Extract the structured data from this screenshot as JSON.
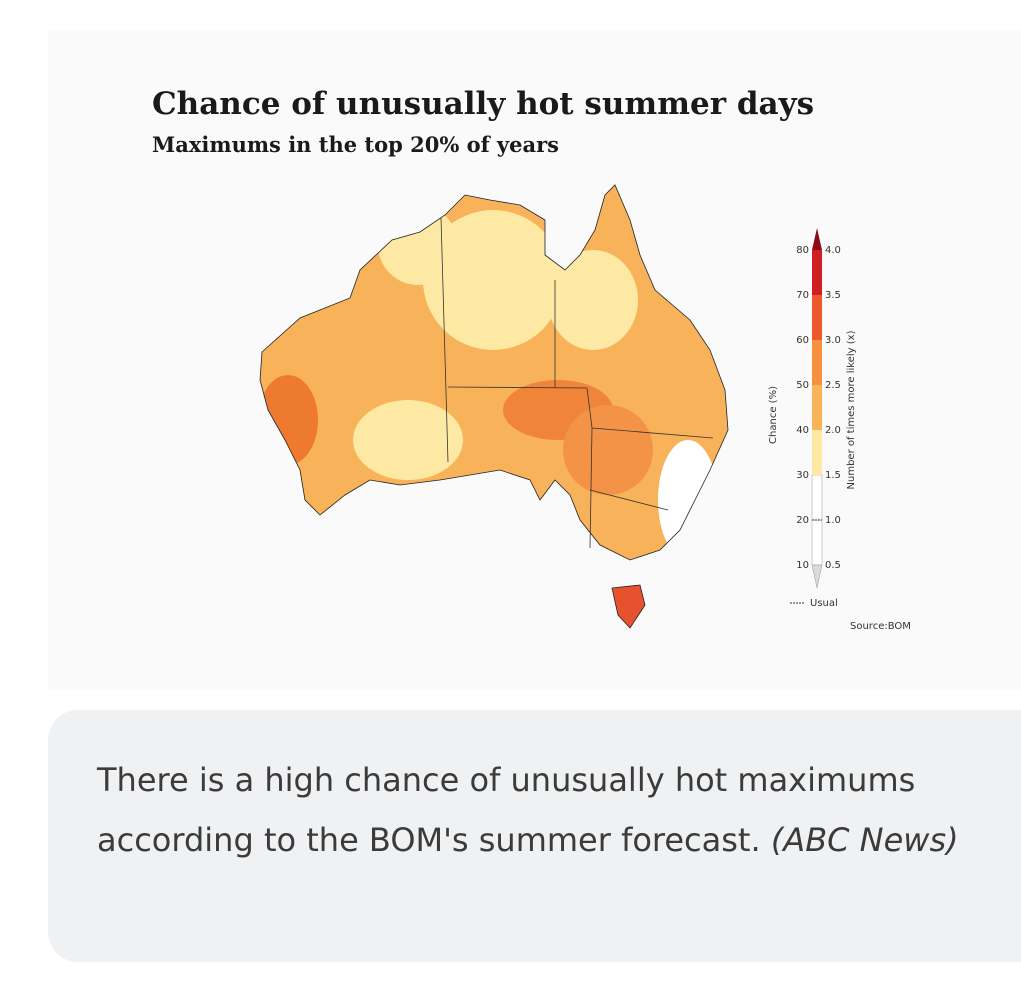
{
  "figure": {
    "title": "Chance of unusually hot summer days",
    "subtitle": "Maximums in the top 20% of years",
    "legend": {
      "chance_label": "Chance (%)",
      "chance_ticks": [
        "10",
        "20",
        "30",
        "40",
        "50",
        "60",
        "70",
        "80"
      ],
      "ratio_label": "Number of times more likely (x)",
      "ratio_ticks": [
        "0.5",
        "1.0",
        "1.5",
        "2.0",
        "2.5",
        "3.0",
        "3.5",
        "4.0"
      ],
      "usual_label": "Usual"
    },
    "source": "Source:BOM"
  },
  "caption": {
    "text": "There is a high chance of unusually hot maximums according to the BOM's summer forecast.",
    "credit": "(ABC News)"
  }
}
